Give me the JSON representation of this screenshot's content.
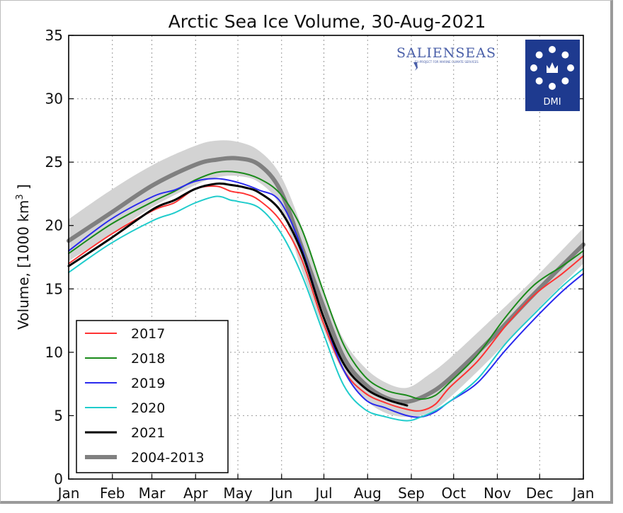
{
  "chart_data": {
    "type": "line",
    "title": "Arctic Sea Ice Volume, 30-Aug-2021",
    "ylabel": "Volume, [1000 km",
    "ylabel_sup": "3",
    "ylabel_end": " ]",
    "ylim": [
      0,
      35
    ],
    "yticks": [
      0,
      5,
      10,
      15,
      20,
      25,
      30,
      35
    ],
    "xlim": [
      0,
      365
    ],
    "xticks": [
      {
        "label": "Jan",
        "day": 0
      },
      {
        "label": "Feb",
        "day": 31
      },
      {
        "label": "Mar",
        "day": 59
      },
      {
        "label": "Apr",
        "day": 90
      },
      {
        "label": "May",
        "day": 120
      },
      {
        "label": "Jun",
        "day": 151
      },
      {
        "label": "Jul",
        "day": 181
      },
      {
        "label": "Aug",
        "day": 212
      },
      {
        "label": "Sep",
        "day": 243
      },
      {
        "label": "Oct",
        "day": 273
      },
      {
        "label": "Nov",
        "day": 304
      },
      {
        "label": "Dec",
        "day": 334
      },
      {
        "label": "Jan",
        "day": 365
      }
    ],
    "grid": true,
    "legend_position": "bottom-left",
    "band": {
      "days": [
        0,
        30,
        60,
        90,
        105,
        120,
        135,
        150,
        165,
        180,
        195,
        210,
        225,
        240,
        255,
        270,
        300,
        330,
        365
      ],
      "upper": [
        20.5,
        22.8,
        24.8,
        26.3,
        26.7,
        26.6,
        25.9,
        24.0,
        20.0,
        15.0,
        11.0,
        8.8,
        7.6,
        7.2,
        8.2,
        9.5,
        12.6,
        15.8,
        19.8
      ],
      "lower": [
        17.2,
        19.3,
        21.5,
        23.2,
        23.8,
        23.9,
        23.4,
        21.5,
        16.6,
        12.0,
        8.4,
        6.3,
        5.2,
        4.9,
        5.2,
        6.4,
        9.6,
        13.1,
        17.0
      ]
    },
    "series": [
      {
        "name": "2017",
        "color": "#ff3333",
        "width": 2,
        "x": [
          0,
          30,
          60,
          75,
          90,
          105,
          115,
          125,
          135,
          150,
          165,
          180,
          195,
          210,
          225,
          240,
          250,
          260,
          270,
          290,
          310,
          330,
          350,
          365
        ],
        "y": [
          17.0,
          19.3,
          21.2,
          21.8,
          22.9,
          23.1,
          22.7,
          22.5,
          22.0,
          20.4,
          17.4,
          12.5,
          8.6,
          6.8,
          6.0,
          5.5,
          5.4,
          5.9,
          7.2,
          9.3,
          12.1,
          14.5,
          16.2,
          17.6
        ]
      },
      {
        "name": "2018",
        "color": "#1a8a1a",
        "width": 2,
        "x": [
          0,
          30,
          60,
          75,
          90,
          105,
          120,
          135,
          150,
          165,
          180,
          195,
          210,
          225,
          240,
          250,
          260,
          270,
          290,
          310,
          330,
          350,
          365
        ],
        "y": [
          17.8,
          20.1,
          21.9,
          22.7,
          23.6,
          24.2,
          24.2,
          23.7,
          22.5,
          19.8,
          15.0,
          10.6,
          8.1,
          7.0,
          6.6,
          6.3,
          6.6,
          7.6,
          9.8,
          12.8,
          15.3,
          16.8,
          18.0
        ]
      },
      {
        "name": "2019",
        "color": "#2a2aee",
        "width": 2,
        "x": [
          0,
          30,
          60,
          75,
          90,
          105,
          120,
          135,
          150,
          165,
          180,
          195,
          210,
          225,
          240,
          250,
          260,
          270,
          290,
          310,
          330,
          350,
          365
        ],
        "y": [
          18.0,
          20.5,
          22.3,
          22.8,
          23.5,
          23.7,
          23.4,
          22.8,
          21.9,
          18.3,
          13.0,
          8.6,
          6.3,
          5.6,
          5.0,
          4.9,
          5.3,
          6.1,
          7.6,
          10.2,
          12.6,
          14.8,
          16.2
        ]
      },
      {
        "name": "2020",
        "color": "#20cccc",
        "width": 2,
        "x": [
          0,
          30,
          60,
          75,
          90,
          105,
          115,
          120,
          135,
          150,
          165,
          180,
          195,
          210,
          225,
          240,
          250,
          260,
          270,
          290,
          310,
          330,
          350,
          365
        ],
        "y": [
          16.3,
          18.6,
          20.4,
          21.0,
          21.8,
          22.3,
          22.0,
          21.9,
          21.4,
          19.5,
          16.2,
          11.7,
          7.4,
          5.5,
          4.9,
          4.6,
          4.9,
          5.4,
          6.1,
          7.9,
          10.7,
          13.0,
          15.2,
          16.6
        ]
      },
      {
        "name": "2021",
        "color": "#000000",
        "width": 3,
        "x": [
          0,
          30,
          60,
          75,
          90,
          105,
          115,
          125,
          135,
          150,
          165,
          180,
          195,
          210,
          225,
          240
        ],
        "y": [
          16.8,
          19.0,
          21.3,
          22.0,
          22.9,
          23.3,
          23.2,
          23.0,
          22.6,
          21.2,
          18.0,
          13.0,
          9.1,
          7.2,
          6.3,
          5.8
        ]
      },
      {
        "name": "2004-2013",
        "color": "#808080",
        "width": 6,
        "x": [
          0,
          30,
          60,
          90,
          105,
          120,
          135,
          150,
          165,
          180,
          195,
          210,
          225,
          240,
          255,
          270,
          300,
          330,
          365
        ],
        "y": [
          18.8,
          21.0,
          23.2,
          24.8,
          25.2,
          25.3,
          24.8,
          22.8,
          18.4,
          13.8,
          9.6,
          7.5,
          6.4,
          6.1,
          6.7,
          7.9,
          11.1,
          14.6,
          18.5
        ]
      }
    ]
  },
  "logo": {
    "name": "SALIENSEAS",
    "tagline": "EU-PROJECT FOR MARINE CLIMATE SERVICES",
    "badge": "DMI",
    "badge_color": "#1e3a8f"
  }
}
